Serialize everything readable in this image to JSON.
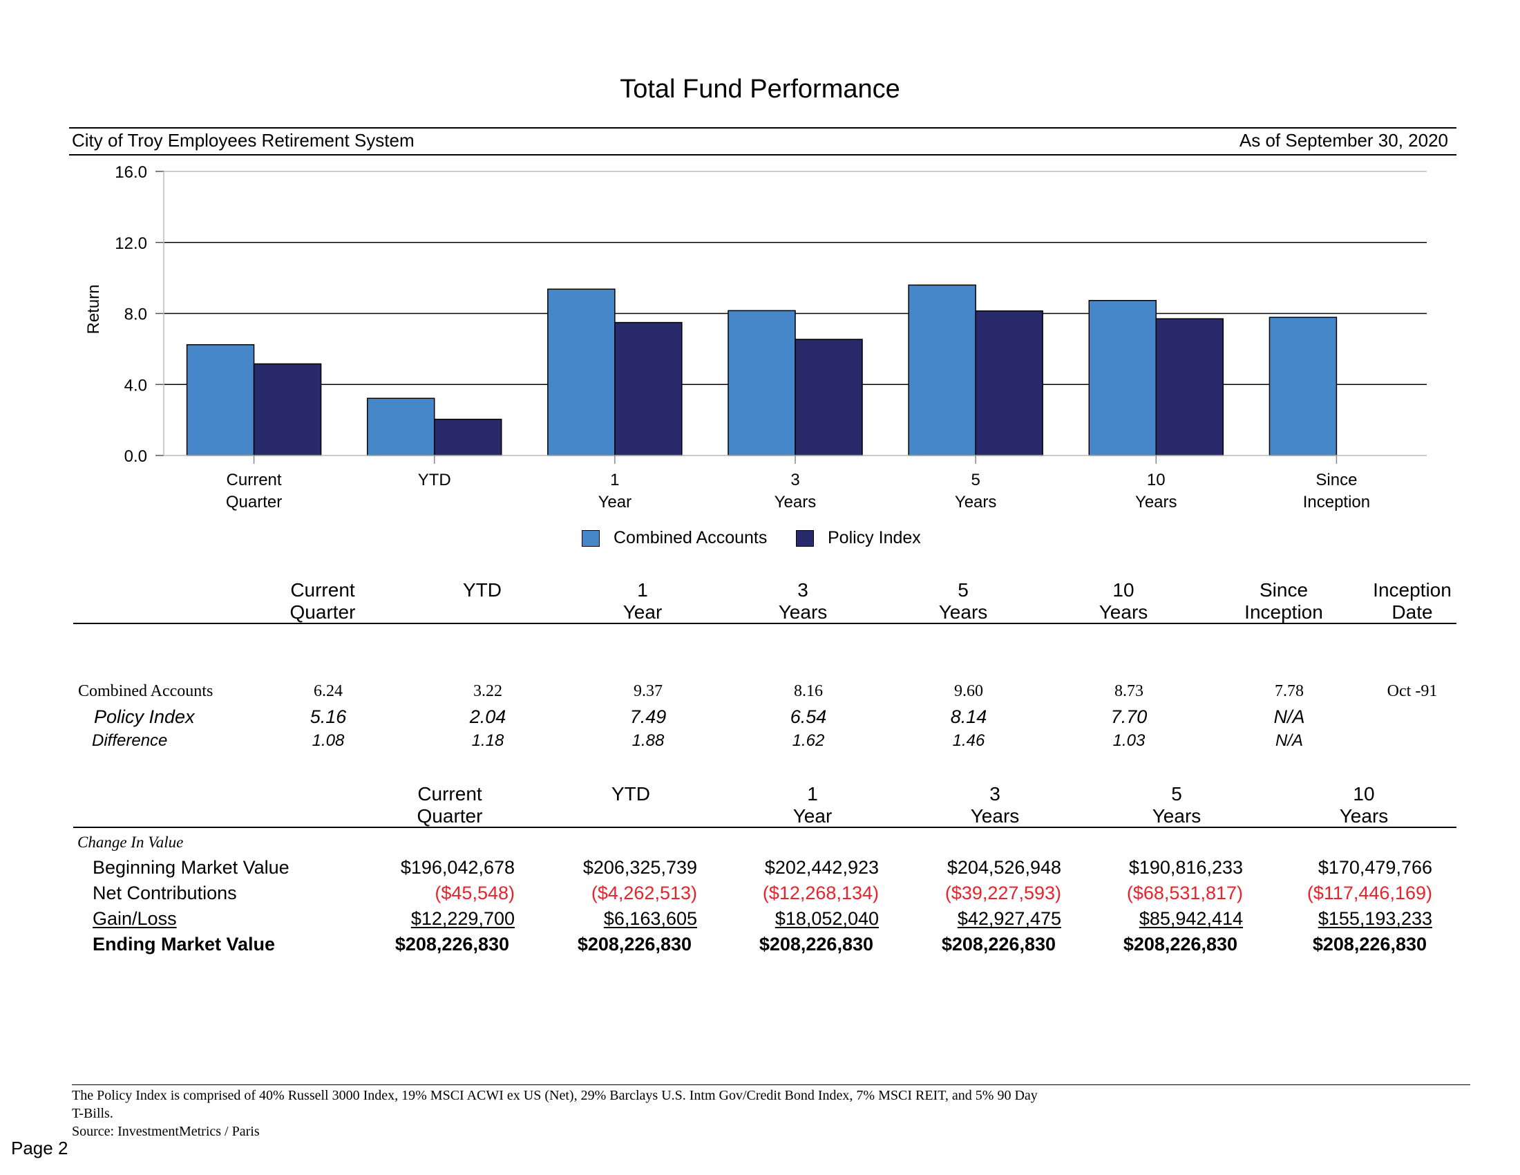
{
  "title": "Total Fund Performance",
  "header": {
    "left": "City of Troy Employees Retirement System",
    "right": "As of September 30, 2020"
  },
  "colors": {
    "combined": "#4587c8",
    "policy": "#282a6b",
    "negative": "#e8232a"
  },
  "chart_data": {
    "type": "bar",
    "ylabel": "Return",
    "ylim": [
      0,
      16
    ],
    "yticks": [
      "0.0",
      "4.0",
      "8.0",
      "12.0",
      "16.0"
    ],
    "ytick_values": [
      0,
      4,
      8,
      12,
      16
    ],
    "categories": [
      [
        "Current",
        "Quarter"
      ],
      [
        "YTD"
      ],
      [
        "1",
        "Year"
      ],
      [
        "3",
        "Years"
      ],
      [
        "5",
        "Years"
      ],
      [
        "10",
        "Years"
      ],
      [
        "Since",
        "Inception"
      ]
    ],
    "series": [
      {
        "name": "Combined Accounts",
        "values": [
          6.24,
          3.22,
          9.37,
          8.16,
          9.6,
          8.73,
          7.78
        ]
      },
      {
        "name": "Policy Index",
        "values": [
          5.16,
          2.04,
          7.49,
          6.54,
          8.14,
          7.7,
          null
        ]
      }
    ],
    "grid": true,
    "legend": "bottom-center"
  },
  "perf_table": {
    "headers": [
      [
        "Current",
        "Quarter"
      ],
      [
        "YTD"
      ],
      [
        "1",
        "Year"
      ],
      [
        "3",
        "Years"
      ],
      [
        "5",
        "Years"
      ],
      [
        "10",
        "Years"
      ],
      [
        "Since",
        "Inception"
      ],
      [
        "Inception",
        "Date"
      ]
    ],
    "rows": [
      {
        "label": "Combined Accounts",
        "values": [
          "6.24",
          "3.22",
          "9.37",
          "8.16",
          "9.60",
          "8.73",
          "7.78",
          "Oct -91"
        ]
      },
      {
        "label": "Policy Index",
        "values": [
          "5.16",
          "2.04",
          "7.49",
          "6.54",
          "8.14",
          "7.70",
          "N/A",
          ""
        ]
      },
      {
        "label": "Difference",
        "values": [
          "1.08",
          "1.18",
          "1.88",
          "1.62",
          "1.46",
          "1.03",
          "N/A",
          ""
        ]
      }
    ]
  },
  "value_table": {
    "headers": [
      [
        "Current",
        "Quarter"
      ],
      [
        "YTD"
      ],
      [
        "1",
        "Year"
      ],
      [
        "3",
        "Years"
      ],
      [
        "5",
        "Years"
      ],
      [
        "10",
        "Years"
      ]
    ],
    "section_label": "Change In Value",
    "rows": [
      {
        "label": "Beginning Market Value",
        "values": [
          "$196,042,678",
          "$206,325,739",
          "$202,442,923",
          "$204,526,948",
          "$190,816,233",
          "$170,479,766"
        ]
      },
      {
        "label": "Net Contributions",
        "values": [
          "($45,548)",
          "($4,262,513)",
          "($12,268,134)",
          "($39,227,593)",
          "($68,531,817)",
          "($117,446,169)"
        ]
      },
      {
        "label": "Gain/Loss",
        "values": [
          "$12,229,700",
          "$6,163,605",
          "$18,052,040",
          "$42,927,475",
          "$85,942,414",
          "$155,193,233"
        ]
      },
      {
        "label": "Ending Market Value",
        "values": [
          "$208,226,830",
          "$208,226,830",
          "$208,226,830",
          "$208,226,830",
          "$208,226,830",
          "$208,226,830"
        ]
      }
    ]
  },
  "footnote": {
    "line1": "The Policy Index is comprised of 40% Russell 3000 Index, 19% MSCI ACWI ex US (Net), 29% Barclays U.S. Intm Gov/Credit Bond Index, 7% MSCI REIT, and 5% 90 Day",
    "line2": "T-Bills.",
    "source": "Source: InvestmentMetrics / Paris"
  },
  "page_label": "Page 2"
}
